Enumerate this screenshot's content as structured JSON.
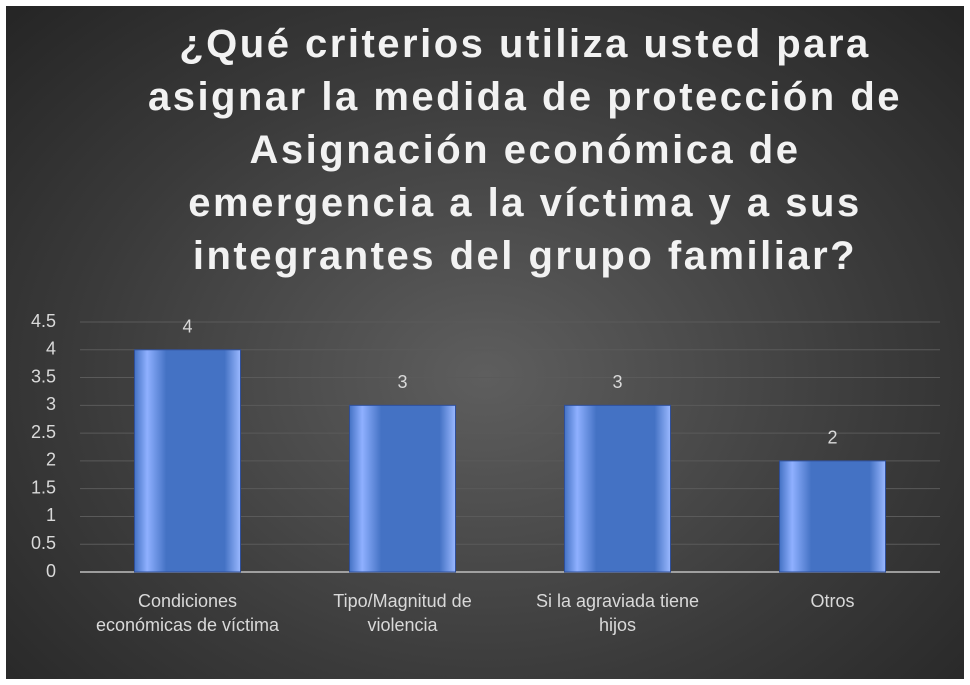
{
  "chart_data": {
    "type": "bar",
    "title": "¿Qué criterios utiliza usted para asignar la medida de protección de Asignación económica de emergencia a la víctima y a sus integrantes del grupo familiar?",
    "categories": [
      "Condiciones económicas de víctima",
      "Tipo/Magnitud de violencia",
      "Si la agraviada tiene hijos",
      "Otros"
    ],
    "values": [
      4,
      3,
      3,
      2
    ],
    "color": "#4472c4",
    "ylim": [
      0,
      4.5
    ],
    "yticks": [
      0,
      0.5,
      1,
      1.5,
      2,
      2.5,
      3,
      3.5,
      4,
      4.5
    ],
    "grid": true
  }
}
